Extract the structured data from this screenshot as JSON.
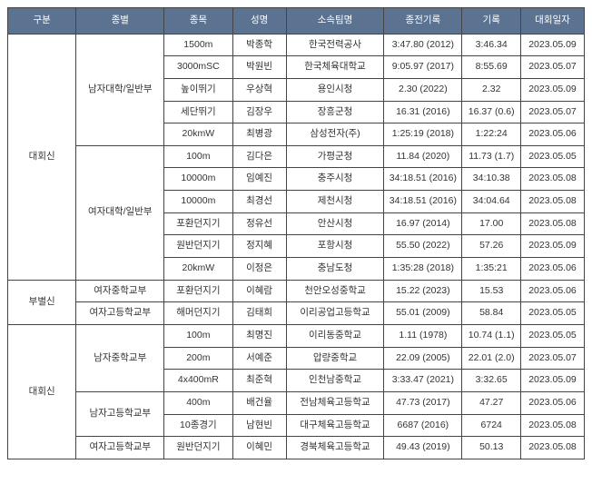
{
  "headers": {
    "gubun": "구분",
    "jongbyeol": "종별",
    "jongmok": "종목",
    "name": "성명",
    "team": "소속팀명",
    "prev": "종전기록",
    "rec": "기록",
    "date": "대회일자"
  },
  "groups": {
    "g1": {
      "gubun": "대회신",
      "subA": "남자대학/일반부",
      "subB": "여자대학/일반부"
    },
    "g2": {
      "gubun": "부별신",
      "subA": "여자중학교부",
      "subB": "여자고등학교부"
    },
    "g3": {
      "gubun": "대회신",
      "subA": "남자중학교부",
      "subB": "남자고등학교부",
      "subC": "여자고등학교부"
    }
  },
  "rows": {
    "r0": {
      "jongmok": "1500m",
      "name": "박종학",
      "team": "한국전력공사",
      "prev": "3:47.80 (2012)",
      "rec": "3:46.34",
      "date": "2023.05.09"
    },
    "r1": {
      "jongmok": "3000mSC",
      "name": "박원빈",
      "team": "한국체육대학교",
      "prev": "9:05.97 (2017)",
      "rec": "8:55.69",
      "date": "2023.05.07"
    },
    "r2": {
      "jongmok": "높이뛰기",
      "name": "우상혁",
      "team": "용인시청",
      "prev": "2.30 (2022)",
      "rec": "2.32",
      "date": "2023.05.09"
    },
    "r3": {
      "jongmok": "세단뛰기",
      "name": "김장우",
      "team": "장흥군청",
      "prev": "16.31 (2016)",
      "rec": "16.37 (0.6)",
      "date": "2023.05.07"
    },
    "r4": {
      "jongmok": "20kmW",
      "name": "최병광",
      "team": "삼성전자(주)",
      "prev": "1:25:19 (2018)",
      "rec": "1:22:24",
      "date": "2023.05.06"
    },
    "r5": {
      "jongmok": "100m",
      "name": "김다은",
      "team": "가평군청",
      "prev": "11.84 (2020)",
      "rec": "11.73 (1.7)",
      "date": "2023.05.05"
    },
    "r6": {
      "jongmok": "10000m",
      "name": "임예진",
      "team": "충주시청",
      "prev": "34:18.51 (2016)",
      "rec": "34:10.38",
      "date": "2023.05.08"
    },
    "r7": {
      "jongmok": "10000m",
      "name": "최경선",
      "team": "제천시청",
      "prev": "34:18.51 (2016)",
      "rec": "34:04.64",
      "date": "2023.05.08"
    },
    "r8": {
      "jongmok": "포환던지기",
      "name": "정유선",
      "team": "안산시청",
      "prev": "16.97 (2014)",
      "rec": "17.00",
      "date": "2023.05.08"
    },
    "r9": {
      "jongmok": "원반던지기",
      "name": "정지혜",
      "team": "포항시청",
      "prev": "55.50 (2022)",
      "rec": "57.26",
      "date": "2023.05.09"
    },
    "r10": {
      "jongmok": "20kmW",
      "name": "이정은",
      "team": "충남도청",
      "prev": "1:35:28 (2018)",
      "rec": "1:35:21",
      "date": "2023.05.06"
    },
    "r11": {
      "jongmok": "포환던지기",
      "name": "이혜람",
      "team": "천안오성중학교",
      "prev": "15.22 (2023)",
      "rec": "15.53",
      "date": "2023.05.06"
    },
    "r12": {
      "jongmok": "해머던지기",
      "name": "김태희",
      "team": "이리공업고등학교",
      "prev": "55.01 (2009)",
      "rec": "58.84",
      "date": "2023.05.05"
    },
    "r13": {
      "jongmok": "100m",
      "name": "최명진",
      "team": "이리동중학교",
      "prev": "1.11 (1978)",
      "rec": "10.74 (1.1)",
      "date": "2023.05.05"
    },
    "r14": {
      "jongmok": "200m",
      "name": "서예준",
      "team": "압량중학교",
      "prev": "22.09 (2005)",
      "rec": "22.01 (2.0)",
      "date": "2023.05.07"
    },
    "r15": {
      "jongmok": "4x400mR",
      "name": "최준혁",
      "team": "인천남중학교",
      "prev": "3:33.47 (2021)",
      "rec": "3:32.65",
      "date": "2023.05.09"
    },
    "r16": {
      "jongmok": "400m",
      "name": "배건율",
      "team": "전남체육고등학교",
      "prev": "47.73 (2017)",
      "rec": "47.27",
      "date": "2023.05.06"
    },
    "r17": {
      "jongmok": "10종경기",
      "name": "남현빈",
      "team": "대구체육고등학교",
      "prev": "6687 (2016)",
      "rec": "6724",
      "date": "2023.05.08"
    },
    "r18": {
      "jongmok": "원반던지기",
      "name": "이혜민",
      "team": "경북체육고등학교",
      "prev": "49.43 (2019)",
      "rec": "50.13",
      "date": "2023.05.08"
    }
  }
}
